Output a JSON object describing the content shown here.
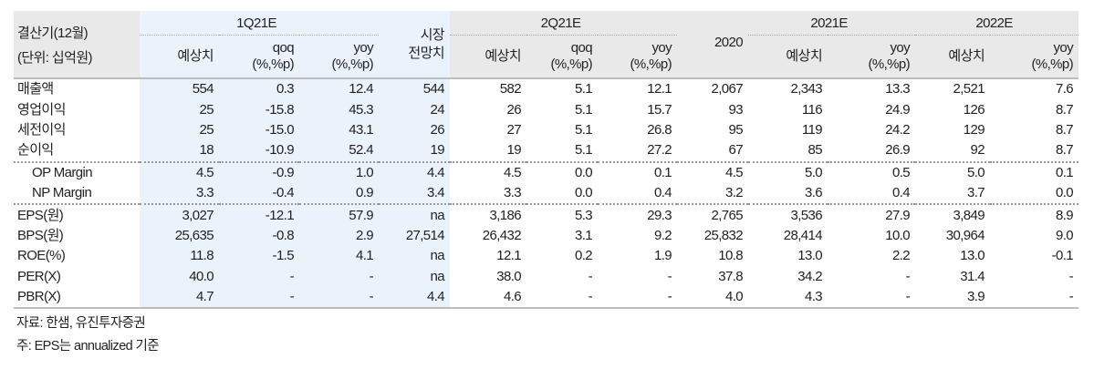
{
  "header": {
    "label_line1": "결산기(12월)",
    "label_line2": "(단위: 십억원)",
    "groups": [
      "1Q21E",
      "시장\n전망치",
      "2Q21E",
      "2020",
      "2021E",
      "2022E"
    ],
    "market_line1": "시장",
    "market_line2": "전망치",
    "sub": {
      "estimate": "예상치",
      "qoq_1": "qoq",
      "qoq_2": "(%,%p)",
      "yoy_1": "yoy",
      "yoy_2": "(%,%p)"
    }
  },
  "rows": [
    {
      "label": "매출액",
      "values": [
        "554",
        "0.3",
        "12.4",
        "544",
        "582",
        "5.1",
        "12.1",
        "2,067",
        "2,343",
        "13.3",
        "2,521",
        "7.6"
      ]
    },
    {
      "label": "영업이익",
      "values": [
        "25",
        "-15.8",
        "45.3",
        "24",
        "26",
        "5.1",
        "15.7",
        "93",
        "116",
        "24.9",
        "126",
        "8.7"
      ]
    },
    {
      "label": "세전이익",
      "values": [
        "25",
        "-15.0",
        "43.1",
        "26",
        "27",
        "5.1",
        "26.8",
        "95",
        "119",
        "24.2",
        "129",
        "8.7"
      ]
    },
    {
      "label": "순이익",
      "values": [
        "18",
        "-10.9",
        "52.4",
        "19",
        "19",
        "5.1",
        "27.2",
        "67",
        "85",
        "26.9",
        "92",
        "8.7"
      ],
      "sep": "dash"
    },
    {
      "label": "OP Margin",
      "indent": true,
      "values": [
        "4.5",
        "-0.9",
        "1.0",
        "4.4",
        "4.5",
        "0.0",
        "0.1",
        "4.5",
        "5.0",
        "0.5",
        "5.0",
        "0.1"
      ]
    },
    {
      "label": "NP Margin",
      "indent": true,
      "values": [
        "3.3",
        "-0.4",
        "0.9",
        "3.4",
        "3.3",
        "0.0",
        "0.4",
        "3.2",
        "3.6",
        "0.4",
        "3.7",
        "0.0"
      ],
      "sep": "dash"
    },
    {
      "label": "EPS(원)",
      "values": [
        "3,027",
        "-12.1",
        "57.9",
        "na",
        "3,186",
        "5.3",
        "29.3",
        "2,765",
        "3,536",
        "27.9",
        "3,849",
        "8.9"
      ]
    },
    {
      "label": "BPS(원)",
      "values": [
        "25,635",
        "-0.8",
        "2.9",
        "27,514",
        "26,432",
        "3.1",
        "9.2",
        "25,832",
        "28,414",
        "10.0",
        "30,964",
        "9.0"
      ]
    },
    {
      "label": "ROE(%)",
      "values": [
        "11.8",
        "-1.5",
        "4.1",
        "na",
        "12.1",
        "0.2",
        "1.9",
        "10.8",
        "13.0",
        "2.2",
        "13.0",
        "-0.1"
      ]
    },
    {
      "label": "PER(X)",
      "values": [
        "40.0",
        "-",
        "-",
        "na",
        "38.0",
        "-",
        "-",
        "37.8",
        "34.2",
        "-",
        "31.4",
        "-"
      ]
    },
    {
      "label": "PBR(X)",
      "values": [
        "4.7",
        "-",
        "-",
        "4.4",
        "4.6",
        "-",
        "-",
        "4.0",
        "4.3",
        "-",
        "3.9",
        "-"
      ],
      "sep": "last"
    }
  ],
  "footnotes": [
    "자료: 한샘, 유진투자증권",
    "주: EPS는 annualized 기준"
  ],
  "colors": {
    "header_bg": "#e9e9e9",
    "highlight_bg": "#eaf3fb"
  }
}
